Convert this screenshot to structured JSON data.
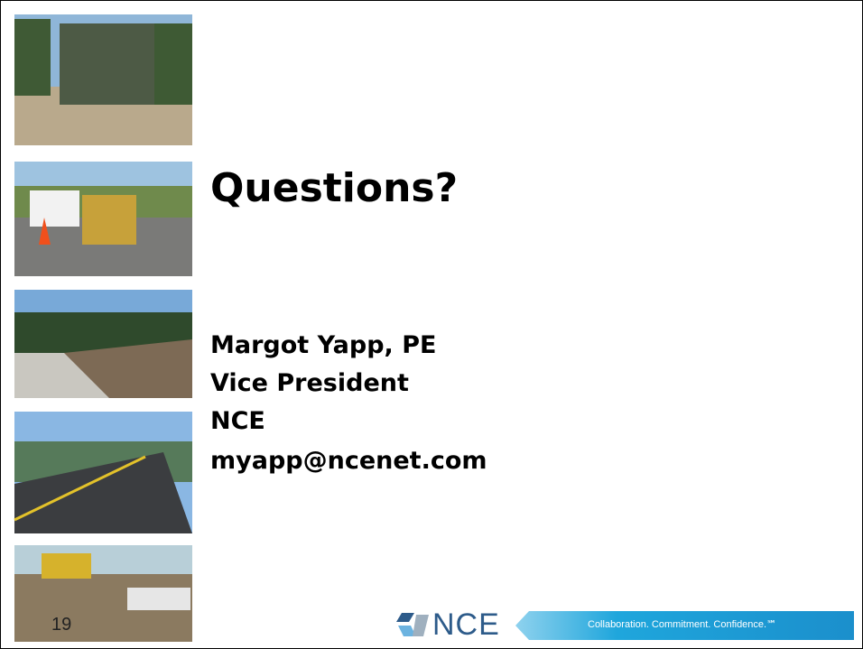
{
  "slide": {
    "title": "Questions?",
    "contact": [
      "Margot Yapp, PE",
      "Vice President",
      "NCE",
      "myapp@ncenet.com"
    ],
    "page_number": "19",
    "logo": "NCE",
    "tagline": "Collaboration. Commitment. Confidence.℠"
  }
}
